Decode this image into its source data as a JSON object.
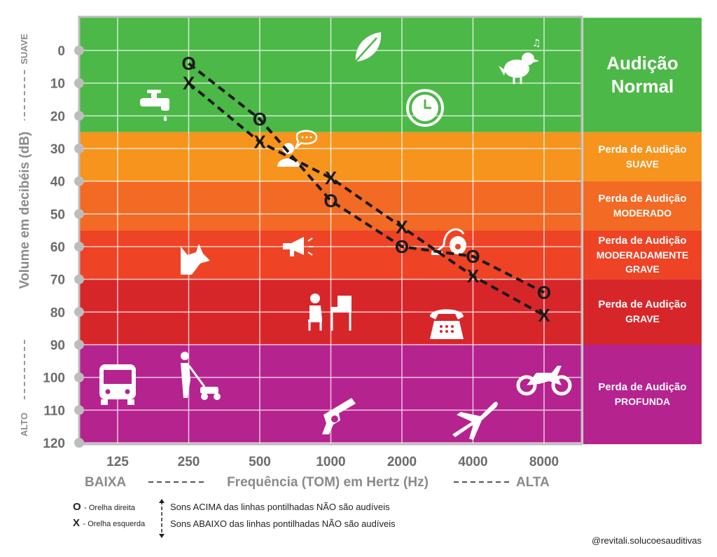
{
  "chart_data": {
    "type": "line",
    "xlabel": "Frequência (TOM) em Hertz (Hz)",
    "x_left_label": "BAIXA",
    "x_right_label": "ALTA",
    "ylabel": "Volume em decibéis  (dB)",
    "y_top_label": "SUAVE",
    "y_bottom_label": "ALTO",
    "categories": [
      "125",
      "250",
      "500",
      "1000",
      "2000",
      "4000",
      "8000"
    ],
    "yticks": [
      0,
      10,
      20,
      30,
      40,
      50,
      60,
      70,
      80,
      90,
      100,
      110,
      120
    ],
    "ylim": [
      0,
      120
    ],
    "y_inverted": true,
    "grid": true,
    "series": [
      {
        "marker": "O",
        "x": [
          250,
          500,
          1000,
          2000,
          4000,
          8000
        ],
        "values": [
          4,
          21,
          46,
          60,
          63,
          74
        ],
        "style": "dashed"
      },
      {
        "marker": "X",
        "x": [
          250,
          500,
          1000,
          2000,
          4000,
          8000
        ],
        "values": [
          10,
          28,
          39,
          54,
          69,
          81
        ],
        "style": "dashed"
      }
    ],
    "bands": [
      {
        "from": -10,
        "to": 25,
        "color": "#4cb847",
        "label_line1": "Audição",
        "label_line2": "Normal",
        "big": true
      },
      {
        "from": 25,
        "to": 40,
        "color": "#f7941d",
        "label_line1": "Perda de Audição",
        "label_line2": "SUAVE"
      },
      {
        "from": 40,
        "to": 55,
        "color": "#f26a23",
        "label_line1": "Perda de Audição",
        "label_line2": "MODERADO"
      },
      {
        "from": 55,
        "to": 70,
        "color": "#ee4325",
        "label_line1": "Perda de Audição",
        "label_line2": "MODERADAMENTE",
        "label_line3": "GRAVE"
      },
      {
        "from": 70,
        "to": 90,
        "color": "#d7262a",
        "label_line1": "Perda de Audição",
        "label_line2": "GRAVE"
      },
      {
        "from": 90,
        "to": 130,
        "color": "#b5238f",
        "label_line1": "Perda de Audição",
        "label_line2": "PROFUNDA"
      }
    ],
    "icons": [
      "leaf-icon",
      "bird-icon",
      "faucet-icon",
      "clock-icon",
      "person-talking-icon",
      "dog-icon",
      "megaphone-icon",
      "vacuum-icon",
      "piano-player-icon",
      "telephone-icon",
      "bus-icon",
      "lawnmower-icon",
      "gun-icon",
      "airplane-icon",
      "motorcycle-icon"
    ]
  },
  "legend": {
    "o_symbol": "O",
    "o_label": "- Orelha direita",
    "x_symbol": "X",
    "x_label": "- Orelha esquerda",
    "above_text": "Sons ACIMA das linhas pontilhadas NÃO são audíveis",
    "below_text": "Sons ABAIXO das linhas pontilhadas NÃO são audíveis"
  },
  "credit": "@revitali.solucoesauditivas"
}
